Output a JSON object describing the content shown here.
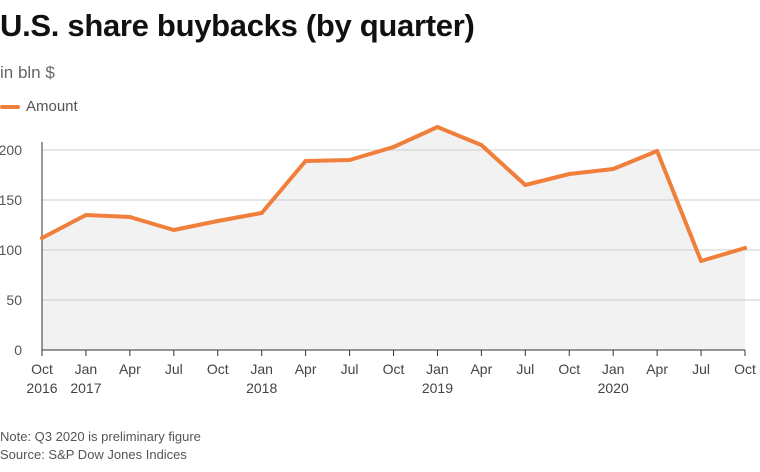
{
  "title": "U.S. share buybacks (by quarter)",
  "subtitle": "in bln $",
  "legend": [
    {
      "label": "Amount",
      "color": "#f07f3c"
    }
  ],
  "footer": {
    "note": "Note: Q3 2020 is preliminary figure",
    "source": "Source: S&P Dow Jones Indices"
  },
  "colors": {
    "line": "#f07f3c",
    "area": "#f2f2f2",
    "grid": "#cccccc",
    "axis": "#333333"
  },
  "chart_data": {
    "type": "area",
    "title": "U.S. share buybacks (by quarter)",
    "subtitle": "in bln $",
    "xlabel": "",
    "ylabel": "",
    "ylim": [
      0,
      200
    ],
    "yticks": [
      0,
      50,
      100,
      150,
      200
    ],
    "grid": true,
    "legend_position": "top-left",
    "x_tick_labels": [
      [
        "Oct",
        "2016"
      ],
      [
        "Jan",
        "2017"
      ],
      [
        "Apr",
        ""
      ],
      [
        "Jul",
        ""
      ],
      [
        "Oct",
        ""
      ],
      [
        "Jan",
        "2018"
      ],
      [
        "Apr",
        ""
      ],
      [
        "Jul",
        ""
      ],
      [
        "Oct",
        ""
      ],
      [
        "Jan",
        "2019"
      ],
      [
        "Apr",
        ""
      ],
      [
        "Jul",
        ""
      ],
      [
        "Oct",
        ""
      ],
      [
        "Jan",
        "2020"
      ],
      [
        "Apr",
        ""
      ],
      [
        "Jul",
        ""
      ],
      [
        "Oct",
        ""
      ]
    ],
    "x": [
      "Oct 2016",
      "Jan 2017",
      "Apr 2017",
      "Jul 2017",
      "Oct 2017",
      "Jan 2018",
      "Apr 2018",
      "Jul 2018",
      "Oct 2018",
      "Jan 2019",
      "Apr 2019",
      "Jul 2019",
      "Oct 2019",
      "Jan 2020",
      "Apr 2020",
      "Jul 2020",
      "Oct 2020"
    ],
    "series": [
      {
        "name": "Amount",
        "values": [
          112,
          135,
          133,
          120,
          129,
          137,
          189,
          190,
          203,
          223,
          205,
          165,
          176,
          181,
          199,
          89,
          102
        ]
      }
    ]
  }
}
